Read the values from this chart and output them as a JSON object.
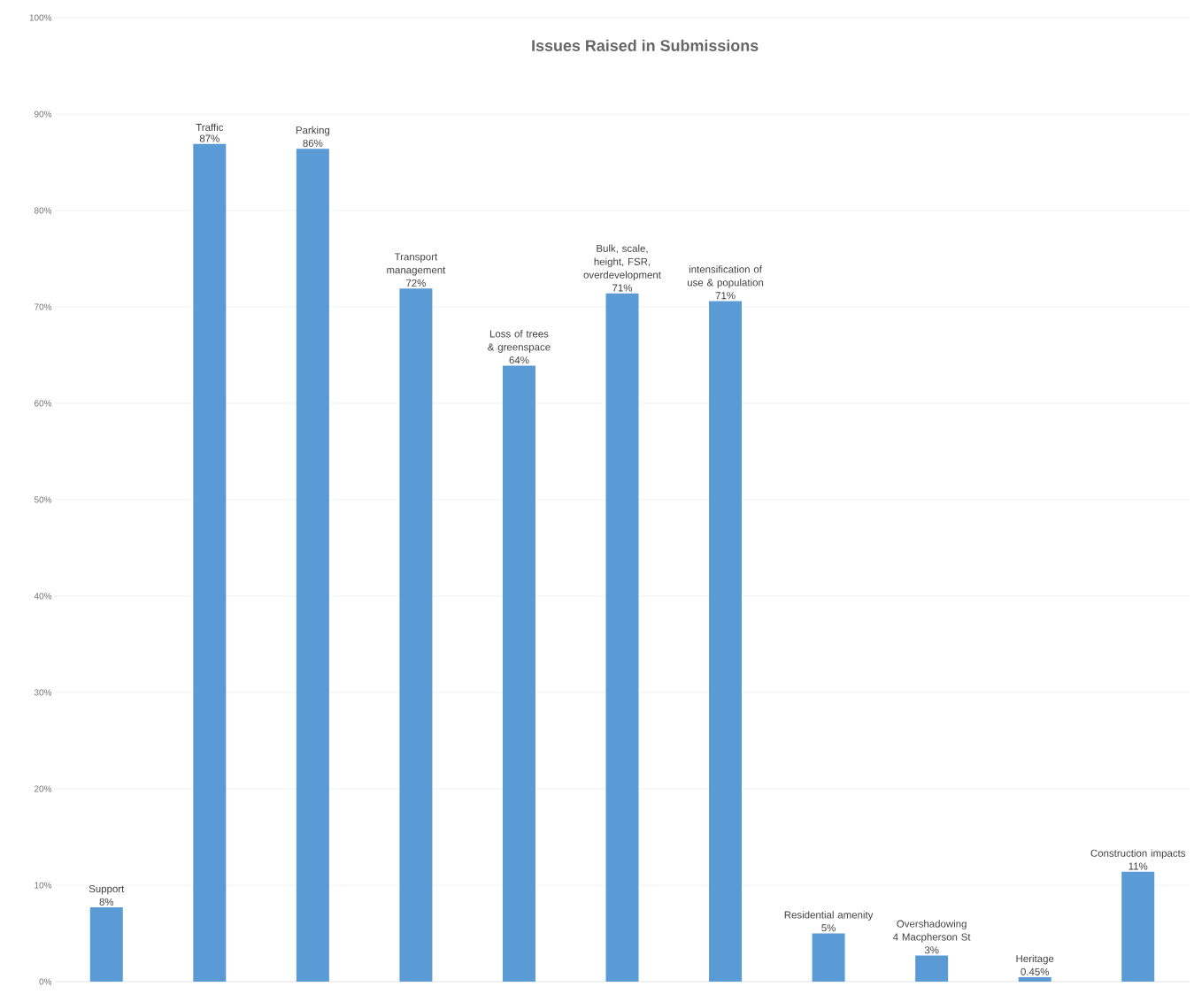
{
  "chart_data": {
    "type": "bar",
    "title": "Issues Raised in Submissions",
    "categories": [
      "Support",
      "Traffic",
      "Parking",
      "Transport management",
      "Loss of trees & greenspace",
      "Bulk, scale, height, FSR, overdevelopment",
      "intensification of use & population",
      "Residential amenity",
      "Overshadowing 4 Macpherson St",
      "Heritage",
      "Construction impacts"
    ],
    "values": [
      7.7,
      86.9,
      86.4,
      71.9,
      63.9,
      71.4,
      70.6,
      5.0,
      2.7,
      0.45,
      11.4
    ],
    "value_labels": [
      "8%",
      "87%",
      "86%",
      "72%",
      "64%",
      "71%",
      "71%",
      "5%",
      "3%",
      "0.45%",
      "11%"
    ],
    "color": "#5b9bd5",
    "ylim": [
      0,
      100
    ],
    "yticks": [
      {
        "value": 0,
        "label": "0%"
      },
      {
        "value": 10,
        "label": "10%"
      },
      {
        "value": 20,
        "label": "20%"
      },
      {
        "value": 30,
        "label": "30%"
      },
      {
        "value": 40,
        "label": "40%"
      },
      {
        "value": 50,
        "label": "50%"
      },
      {
        "value": 60,
        "label": "60%"
      },
      {
        "value": 70,
        "label": "70%"
      },
      {
        "value": 80,
        "label": "80%"
      },
      {
        "value": 90,
        "label": "90%"
      },
      {
        "value": 100,
        "label": "100%"
      }
    ],
    "grid": "y",
    "tick_labels": "y"
  }
}
